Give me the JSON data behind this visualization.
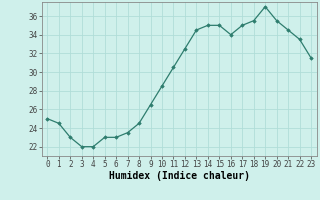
{
  "x": [
    0,
    1,
    2,
    3,
    4,
    5,
    6,
    7,
    8,
    9,
    10,
    11,
    12,
    13,
    14,
    15,
    16,
    17,
    18,
    19,
    20,
    21,
    22,
    23
  ],
  "y": [
    25.0,
    24.5,
    23.0,
    22.0,
    22.0,
    23.0,
    23.0,
    23.5,
    24.5,
    26.5,
    28.5,
    30.5,
    32.5,
    34.5,
    35.0,
    35.0,
    34.0,
    35.0,
    35.5,
    37.0,
    35.5,
    34.5,
    33.5,
    31.5
  ],
  "xlabel": "Humidex (Indice chaleur)",
  "ylim": [
    21,
    37.5
  ],
  "yticks": [
    22,
    24,
    26,
    28,
    30,
    32,
    34,
    36
  ],
  "xticks": [
    0,
    1,
    2,
    3,
    4,
    5,
    6,
    7,
    8,
    9,
    10,
    11,
    12,
    13,
    14,
    15,
    16,
    17,
    18,
    19,
    20,
    21,
    22,
    23
  ],
  "line_color": "#2e7d6e",
  "marker": "D",
  "marker_size": 1.8,
  "bg_color": "#cff0eb",
  "grid_color": "#b0ddd8",
  "axis_color": "#888888",
  "label_fontsize": 7,
  "tick_fontsize": 5.5
}
